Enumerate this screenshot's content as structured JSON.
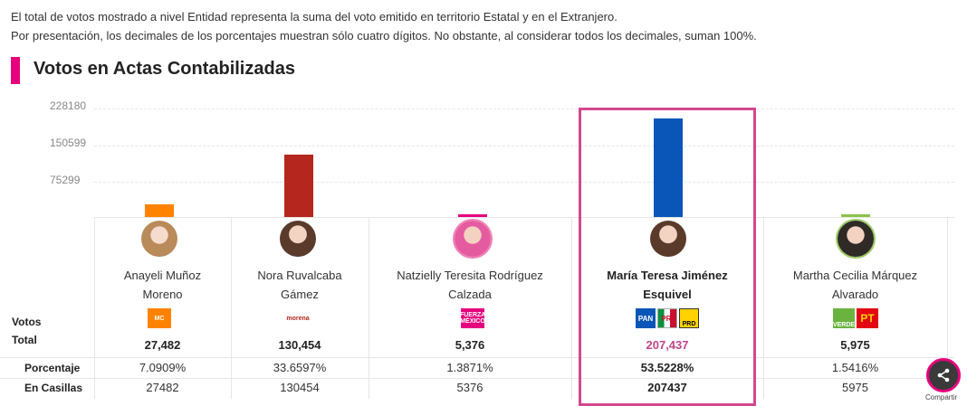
{
  "notes": {
    "line1": "El total de votos mostrado a nivel Entidad representa la suma del voto emitido en territorio Estatal y en el Extranjero.",
    "line2": "Por presentación, los decimales de los porcentajes muestran sólo cuatro dígitos. No obstante, al considerar todos los decimales, suman 100%."
  },
  "section": {
    "title": "Votos en Actas Contabilizadas"
  },
  "row_labels": {
    "votos": "Votos",
    "total": "Total",
    "porcentaje": "Porcentaje",
    "casillas": "En Casillas"
  },
  "share": {
    "label": "Compartir"
  },
  "chart_data": {
    "type": "bar",
    "ylim": [
      0,
      228180
    ],
    "yticks": [
      "228180",
      "150599",
      "75299"
    ],
    "categories": [
      "Anayeli Muñoz Moreno",
      "Nora Ruvalcaba Gámez",
      "Natzielly Teresita Rodríguez Calzada",
      "María Teresa Jiménez Esquivel",
      "Martha Cecilia Márquez Alvarado"
    ],
    "values": [
      27482,
      130454,
      5376,
      207437,
      5975
    ],
    "colors": [
      "#ff8300",
      "#b5261e",
      "#e6007e",
      "#0a56b8",
      "#8bc34a"
    ],
    "highlighted_index": 3
  },
  "candidates": [
    {
      "name_l1": "Anayeli Muñoz",
      "name_l2": "Moreno",
      "party": "MC",
      "total": "27,482",
      "pct": "7.0909%",
      "casillas": "27482"
    },
    {
      "name_l1": "Nora Ruvalcaba",
      "name_l2": "Gámez",
      "party": "morena",
      "total": "130,454",
      "pct": "33.6597%",
      "casillas": "130454"
    },
    {
      "name_l1": "Natzielly Teresita Rodríguez",
      "name_l2": "Calzada",
      "party": "FUERZA MÉXICO",
      "total": "5,376",
      "pct": "1.3871%",
      "casillas": "5376"
    },
    {
      "name_l1": "María Teresa Jiménez",
      "name_l2": "Esquivel",
      "party_pan": "PAN",
      "party_pri": "PRI",
      "party_prd": "PRD",
      "total": "207,437",
      "pct": "53.5228%",
      "casillas": "207437"
    },
    {
      "name_l1": "Martha Cecilia Márquez",
      "name_l2": "Alvarado",
      "party_verde": "VERDE",
      "party_pt": "PT",
      "total": "5,975",
      "pct": "1.5416%",
      "casillas": "5975"
    }
  ]
}
